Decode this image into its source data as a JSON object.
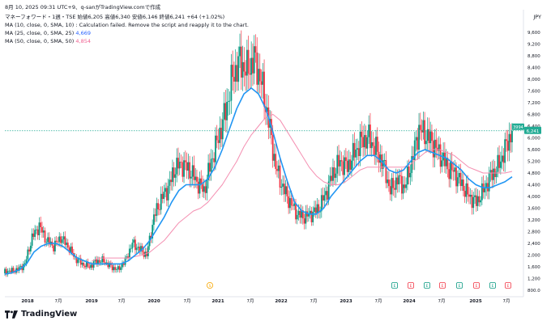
{
  "header": {
    "datetime": "8月 10, 2025 09:31 UTC+9、q-sanがTradingView.comで作成"
  },
  "symbol": {
    "line": "マネーフォワード・1週・TSE  始値6,205  高値6,340  安値6,146  終値6,241  +64 (+1.02%)"
  },
  "indicators": [
    {
      "label": "MA (10, close, 0, SMA, 10)",
      "value": "Calculation failed. Remove the script and reapply it to the chart."
    },
    {
      "label": "MA (25, close, 0, SMA, 25)",
      "value": "4,669"
    },
    {
      "label": "MA (50, close, 0, SMA, 50)",
      "value": "4,854"
    }
  ],
  "currency": "JPY",
  "price_axis": [
    "9,600",
    "9,200",
    "8,800",
    "8,400",
    "8,000",
    "7,600",
    "7,200",
    "6,800",
    "6,400",
    "6,000",
    "5,600",
    "5,200",
    "4,800",
    "4,400",
    "4,000",
    "3,600",
    "3,200",
    "2,800",
    "2,400",
    "2,000",
    "1,600",
    "1,200",
    "800.0"
  ],
  "time_axis": [
    "2018",
    "7月",
    "2019",
    "7月",
    "2020",
    "7月",
    "2021",
    "7月",
    "2022",
    "7月",
    "2023",
    "7月",
    "2024",
    "7月",
    "2025",
    "7月"
  ],
  "badges": {
    "countdown": "3994",
    "last_price": "6,241"
  },
  "event_markers": [
    "S",
    "E",
    "E",
    "E",
    "E",
    "E",
    "E",
    "E",
    "E"
  ],
  "footer": {
    "brand": "TradingView"
  },
  "colors": {
    "up": "#089981",
    "down": "#f23645",
    "ma25": "#2196f3",
    "ma50": "#f48fb1",
    "last_price": "#22ab94"
  },
  "chart_data": {
    "type": "line",
    "series": [
      {
        "values": [
          1450,
          1500,
          1700,
          2600,
          3000,
          2500,
          2300,
          2600,
          2300,
          1900,
          1700,
          1600,
          1800,
          1800,
          1600,
          1500,
          1800,
          2400,
          2200,
          2000,
          3300,
          3900,
          4300,
          5000,
          5100,
          4900,
          4500,
          4200,
          5200,
          6000,
          6900,
          8100,
          8600,
          8300,
          8700,
          7900,
          6600,
          5000,
          4300,
          3800,
          3400,
          3300,
          3400,
          3600,
          4100,
          4800,
          5200,
          5000,
          5500,
          5900,
          6000,
          5600,
          5100,
          4200,
          4600,
          4300,
          5200,
          6300,
          6100,
          5800,
          5400,
          5000,
          4800,
          4400,
          4000,
          3800,
          4200,
          4700,
          5000,
          5600,
          6241
        ]
      },
      {
        "values": [
          1350,
          1400,
          1500,
          1700,
          2100,
          2300,
          2400,
          2400,
          2300,
          2100,
          1900,
          1800,
          1700,
          1700,
          1700,
          1700,
          1700,
          1800,
          2000,
          2200,
          2500,
          2900,
          3300,
          3800,
          4200,
          4400,
          4400,
          4400,
          4600,
          5000,
          5600,
          6300,
          7000,
          7500,
          7700,
          7500,
          7000,
          6200,
          5300,
          4500,
          3800,
          3500,
          3400,
          3400,
          3600,
          4000,
          4300,
          4600,
          4900,
          5200,
          5400,
          5400,
          5200,
          4900,
          4800,
          4900,
          5200,
          5500,
          5600,
          5500,
          5400,
          5300,
          5100,
          4900,
          4600,
          4400,
          4300,
          4300,
          4400,
          4500,
          4669
        ]
      },
      {
        "values": [
          null,
          null,
          null,
          null,
          null,
          null,
          null,
          null,
          null,
          null,
          null,
          null,
          1800,
          1900,
          1900,
          1900,
          1900,
          1900,
          1950,
          2000,
          2100,
          2300,
          2500,
          2800,
          3100,
          3300,
          3500,
          3600,
          3800,
          4100,
          4400,
          4800,
          5200,
          5700,
          6100,
          6400,
          6700,
          6800,
          6600,
          6200,
          5800,
          5400,
          5000,
          4700,
          4500,
          4400,
          4400,
          4500,
          4700,
          4900,
          5000,
          5000,
          5000,
          5000,
          5000,
          5000,
          5100,
          5300,
          5500,
          5600,
          5600,
          5500,
          5400,
          5200,
          5000,
          4900,
          4800,
          4800,
          4800,
          4800,
          4854
        ]
      }
    ],
    "ylim": [
      800,
      9600
    ]
  }
}
